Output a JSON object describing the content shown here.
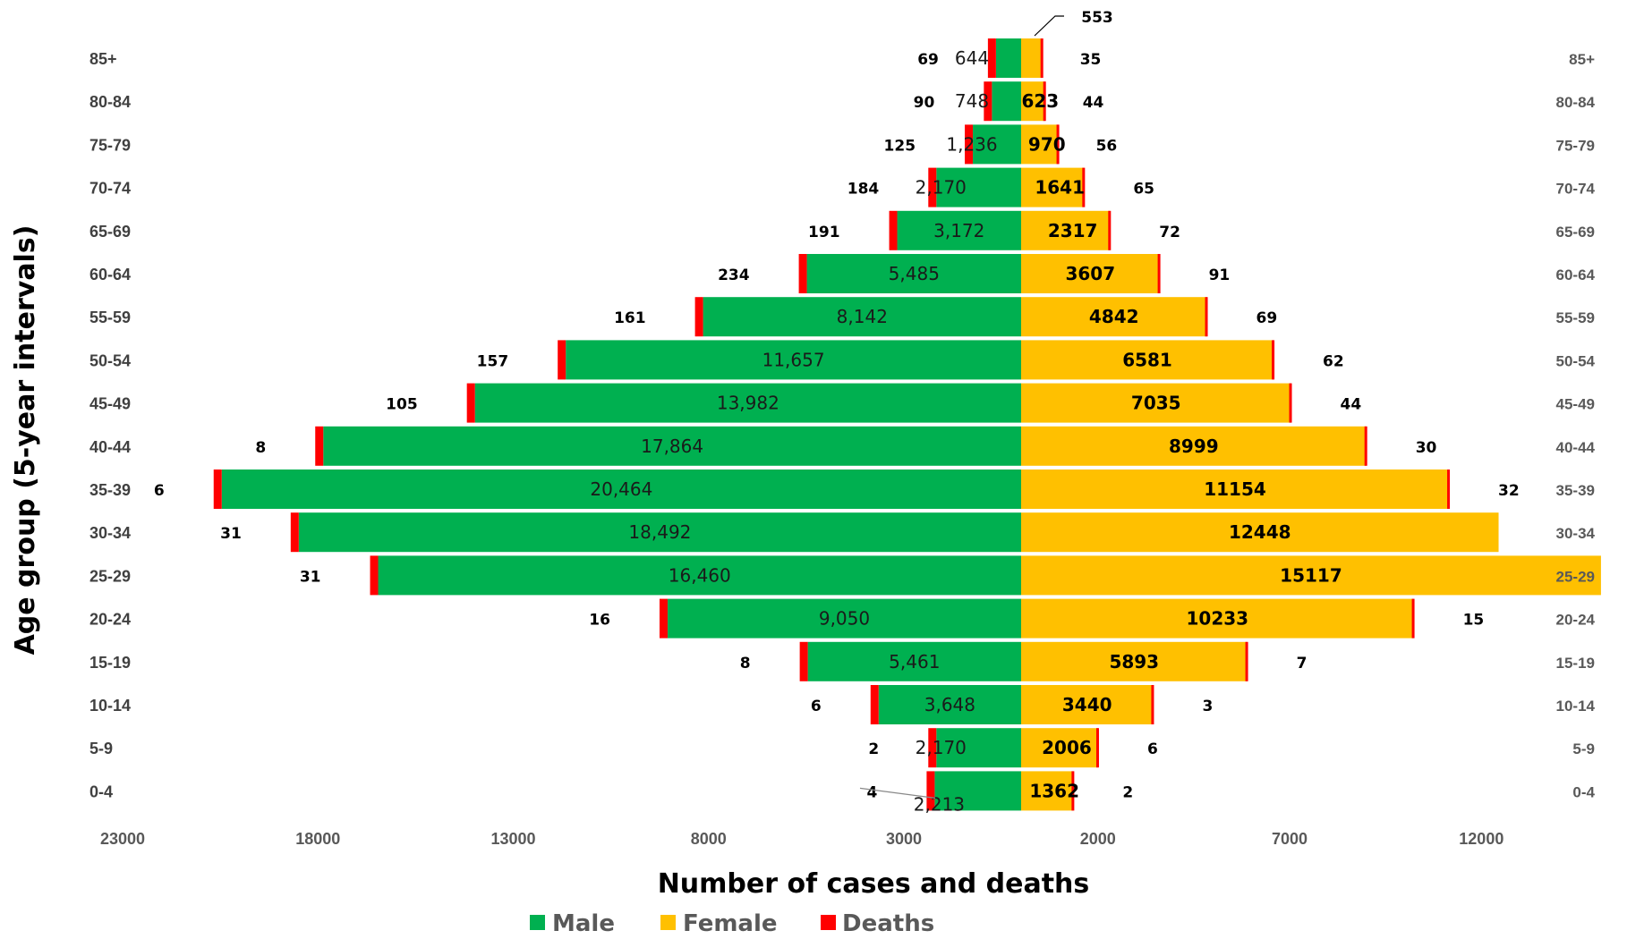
{
  "chart_data": {
    "type": "bar",
    "orientation": "horizontal-pyramid",
    "xlabel": "Number of  cases and deaths",
    "ylabel": "Age group (5-year intervals)",
    "male_axis_ticks": [
      "23000",
      "18000",
      "13000",
      "8000",
      "3000"
    ],
    "female_axis_ticks": [
      "2000",
      "7000",
      "12000"
    ],
    "male_axis_range": [
      0,
      23000
    ],
    "female_axis_range": [
      0,
      12000
    ],
    "legend": {
      "placement": "bottom"
    },
    "grid": false,
    "colors": {
      "male": "#00B050",
      "female": "#FFC000",
      "deaths": "#FF0000"
    },
    "categories": [
      "85+",
      "80-84",
      "75-79",
      "70-74",
      "65-69",
      "60-64",
      "55-59",
      "50-54",
      "45-49",
      "40-44",
      "35-39",
      "30-34",
      "25-29",
      "20-24",
      "15-19",
      "10-14",
      "5-9",
      "0-4"
    ],
    "series": [
      {
        "name": "Male",
        "values": [
          644,
          748,
          1236,
          2170,
          3172,
          5485,
          8142,
          11657,
          13982,
          17864,
          20464,
          18492,
          16460,
          9050,
          5461,
          3648,
          2170,
          2213
        ],
        "labels": [
          "644",
          "748",
          "1,236",
          "2,170",
          "3,172",
          "5,485",
          "8,142",
          "11,657",
          "13,982",
          "17,864",
          "20,464",
          "18,492",
          "16,460",
          "9,050",
          "5,461",
          "3,648",
          "2,170",
          "2,213"
        ],
        "deaths": [
          69,
          90,
          125,
          184,
          191,
          234,
          161,
          157,
          105,
          8,
          6,
          31,
          31,
          16,
          8,
          6,
          2,
          4
        ],
        "death_labels": [
          "69",
          "90",
          "125",
          "184",
          "191",
          "234",
          "161",
          "157",
          "105",
          "8",
          "6",
          "31",
          "31",
          "16",
          "8",
          "6",
          "2",
          "4"
        ]
      },
      {
        "name": "Female",
        "values": [
          553,
          623,
          970,
          1641,
          2317,
          3607,
          4842,
          6581,
          7035,
          8999,
          11154,
          12448,
          15117,
          10233,
          5893,
          3440,
          2006,
          1362
        ],
        "labels": [
          "553",
          "623",
          "970",
          "1641",
          "2317",
          "3607",
          "4842",
          "6581",
          "7035",
          "8999",
          "11154",
          "12448",
          "15117",
          "10233",
          "5893",
          "3440",
          "2006",
          "1362"
        ],
        "deaths": [
          35,
          44,
          56,
          65,
          72,
          91,
          69,
          62,
          44,
          30,
          32,
          0,
          0,
          15,
          7,
          3,
          6,
          2
        ],
        "death_labels": [
          "35",
          "44",
          "56",
          "65",
          "72",
          "91",
          "69",
          "62",
          "44",
          "30",
          "32",
          "",
          "",
          "15",
          "7",
          "3",
          "6",
          "2"
        ]
      },
      {
        "name": "Deaths"
      }
    ]
  }
}
